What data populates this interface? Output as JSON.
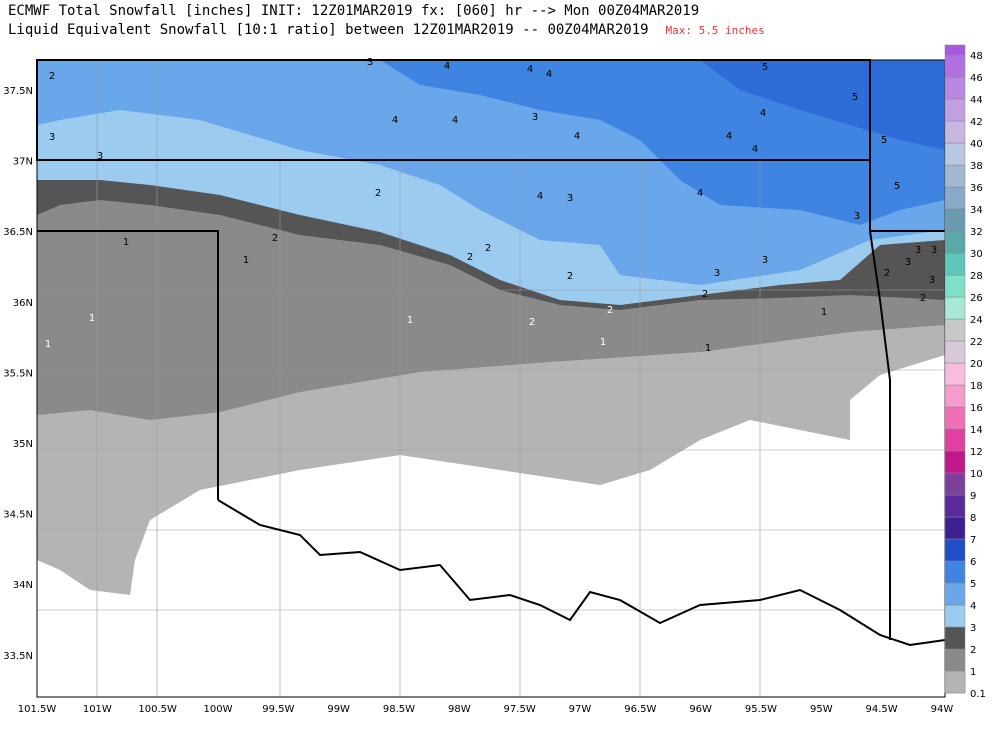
{
  "header": {
    "title_line1": "ECMWF Total Snowfall [inches] INIT: 12Z01MAR2019 fx: [060] hr --> Mon 00Z04MAR2019",
    "title_line2": "Liquid Equivalent Snowfall [10:1 ratio] between 12Z01MAR2019 -- 00Z04MAR2019",
    "max_label": "Max: 5.5 inches"
  },
  "map": {
    "lon_labels": [
      "101.5W",
      "101W",
      "100.5W",
      "100W",
      "99.5W",
      "99W",
      "98.5W",
      "98W",
      "97.5W",
      "97W",
      "96.5W",
      "96W",
      "95.5W",
      "95W",
      "94.5W",
      "94W"
    ],
    "lat_labels": [
      "37.5N",
      "37N",
      "36.5N",
      "36N",
      "35.5N",
      "35N",
      "34.5N",
      "34N",
      "33.5N"
    ],
    "contour_labels": [
      "2",
      "3",
      "3",
      "4",
      "4",
      "3",
      "4",
      "4",
      "4",
      "4",
      "5",
      "5",
      "4",
      "4",
      "4",
      "5",
      "5",
      "2",
      "4",
      "3",
      "4",
      "3",
      "2",
      "1",
      "1",
      "2",
      "2",
      "2",
      "3",
      "3",
      "2",
      "2",
      "2",
      "1",
      "1",
      "1",
      "1",
      "1",
      "1",
      "2",
      "2",
      "3",
      "3",
      "3",
      "3",
      "3"
    ]
  },
  "colorbar": {
    "levels": [
      {
        "label": "0.1",
        "color": "#b4b4b4"
      },
      {
        "label": "1",
        "color": "#8a8a8a"
      },
      {
        "label": "2",
        "color": "#555555"
      },
      {
        "label": "3",
        "color": "#9ccbf0"
      },
      {
        "label": "4",
        "color": "#6aa6ea"
      },
      {
        "label": "5",
        "color": "#3f84e0"
      },
      {
        "label": "6",
        "color": "#1f4fc8"
      },
      {
        "label": "7",
        "color": "#3a2090"
      },
      {
        "label": "8",
        "color": "#5a2a9c"
      },
      {
        "label": "9",
        "color": "#7d3f9c"
      },
      {
        "label": "10",
        "color": "#c0188c"
      },
      {
        "label": "12",
        "color": "#e0409f"
      },
      {
        "label": "14",
        "color": "#f070b8"
      },
      {
        "label": "16",
        "color": "#f59ccf"
      },
      {
        "label": "18",
        "color": "#f7bcdf"
      },
      {
        "label": "20",
        "color": "#d9c8d9"
      },
      {
        "label": "22",
        "color": "#c8c8c8"
      },
      {
        "label": "24",
        "color": "#a8e8d8"
      },
      {
        "label": "26",
        "color": "#7fe0c8"
      },
      {
        "label": "28",
        "color": "#5cc8b8"
      },
      {
        "label": "30",
        "color": "#5aa8a8"
      },
      {
        "label": "32",
        "color": "#6a9ab0"
      },
      {
        "label": "34",
        "color": "#8aa8c8"
      },
      {
        "label": "36",
        "color": "#a0b8d0"
      },
      {
        "label": "38",
        "color": "#b8c8e0"
      },
      {
        "label": "40",
        "color": "#c8b8e0"
      },
      {
        "label": "42",
        "color": "#c0a0e0"
      },
      {
        "label": "44",
        "color": "#b888e0"
      },
      {
        "label": "46",
        "color": "#b070e0"
      },
      {
        "label": "48",
        "color": "#a858e0"
      }
    ]
  }
}
